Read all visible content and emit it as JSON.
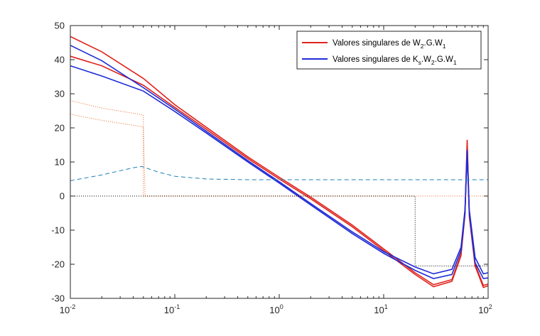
{
  "chart_data": {
    "type": "line",
    "xscale": "log",
    "xlim": [
      0.01,
      100
    ],
    "ylim": [
      -30,
      50
    ],
    "grid": false,
    "legend_position": "top-right",
    "x_ticks": [
      {
        "base": "10",
        "exp": "-2",
        "value": 0.01
      },
      {
        "base": "10",
        "exp": "-1",
        "value": 0.1
      },
      {
        "base": "10",
        "exp": "0",
        "value": 1
      },
      {
        "base": "10",
        "exp": "1",
        "value": 10
      },
      {
        "base": "10",
        "exp": "2",
        "value": 100
      }
    ],
    "y_ticks": [
      "-30",
      "-20",
      "-10",
      "0",
      "10",
      "20",
      "30",
      "40",
      "50"
    ],
    "colors": {
      "red": "#e0231c",
      "blue": "#1f2bd6",
      "orange_dotted": "#e8682a",
      "teal_dashed": "#1d7fb7",
      "black_dotted": "#000000"
    },
    "legend": [
      {
        "text_parts": [
          {
            "t": "Valores singulares de W"
          },
          {
            "t": "2",
            "sub": true
          },
          {
            "t": ".G.W"
          },
          {
            "t": "1",
            "sub": true
          }
        ],
        "color": "#e0231c"
      },
      {
        "text_parts": [
          {
            "t": "Valores singulares de K"
          },
          {
            "t": "s",
            "sub": true
          },
          {
            "t": ".W"
          },
          {
            "t": "2",
            "sub": true
          },
          {
            "t": ".G.W"
          },
          {
            "t": "1",
            "sub": true
          }
        ],
        "color": "#1f2bd6"
      }
    ],
    "series": [
      {
        "color": "#e0231c",
        "style": "solid",
        "points": [
          [
            0.01,
            46.8
          ],
          [
            0.02,
            42.3
          ],
          [
            0.05,
            34.5
          ],
          [
            0.1,
            26.8
          ],
          [
            0.2,
            20.2
          ],
          [
            0.5,
            11.5
          ],
          [
            1,
            5.5
          ],
          [
            2,
            -0.3
          ],
          [
            5,
            -8.5
          ],
          [
            10,
            -15.5
          ],
          [
            20,
            -22.5
          ],
          [
            30,
            -26.0
          ],
          [
            45,
            -24.5
          ],
          [
            55,
            -17
          ],
          [
            60,
            -5
          ],
          [
            63,
            16.5
          ],
          [
            66,
            -5
          ],
          [
            75,
            -20
          ],
          [
            90,
            -26.2
          ],
          [
            100,
            -25.8
          ]
        ]
      },
      {
        "color": "#e0231c",
        "style": "solid",
        "points": [
          [
            0.01,
            41.0
          ],
          [
            0.02,
            38.2
          ],
          [
            0.05,
            32.5
          ],
          [
            0.1,
            26.0
          ],
          [
            0.2,
            19.6
          ],
          [
            0.5,
            11.0
          ],
          [
            1,
            5.0
          ],
          [
            2,
            -0.8
          ],
          [
            5,
            -9.0
          ],
          [
            10,
            -16.0
          ],
          [
            20,
            -23.0
          ],
          [
            30,
            -26.6
          ],
          [
            45,
            -25.0
          ],
          [
            55,
            -17.5
          ],
          [
            60,
            -5.5
          ],
          [
            63,
            15.5
          ],
          [
            66,
            -6
          ],
          [
            75,
            -20.5
          ],
          [
            90,
            -26.8
          ],
          [
            100,
            -26.3
          ]
        ]
      },
      {
        "color": "#1f2bd6",
        "style": "solid",
        "points": [
          [
            0.01,
            44.2
          ],
          [
            0.02,
            39.7
          ],
          [
            0.05,
            31.8
          ],
          [
            0.1,
            25.5
          ],
          [
            0.2,
            19.0
          ],
          [
            0.5,
            10.4
          ],
          [
            1,
            4.2
          ],
          [
            2,
            -2.2
          ],
          [
            5,
            -10.5
          ],
          [
            10,
            -16.3
          ],
          [
            20,
            -20.8
          ],
          [
            30,
            -22.8
          ],
          [
            45,
            -21.5
          ],
          [
            55,
            -15
          ],
          [
            60,
            -4
          ],
          [
            63,
            13.5
          ],
          [
            66,
            -4
          ],
          [
            75,
            -18
          ],
          [
            90,
            -22.8
          ],
          [
            100,
            -22.5
          ]
        ]
      },
      {
        "color": "#1f2bd6",
        "style": "solid",
        "points": [
          [
            0.01,
            38.2
          ],
          [
            0.02,
            35.2
          ],
          [
            0.05,
            30.8
          ],
          [
            0.1,
            24.8
          ],
          [
            0.2,
            18.5
          ],
          [
            0.5,
            10.0
          ],
          [
            1,
            3.8
          ],
          [
            2,
            -2.6
          ],
          [
            5,
            -11.0
          ],
          [
            10,
            -16.8
          ],
          [
            20,
            -21.8
          ],
          [
            30,
            -24.2
          ],
          [
            45,
            -23.0
          ],
          [
            55,
            -16
          ],
          [
            60,
            -5
          ],
          [
            63,
            12.5
          ],
          [
            66,
            -5
          ],
          [
            75,
            -19.5
          ],
          [
            90,
            -24.2
          ],
          [
            100,
            -24.0
          ]
        ]
      },
      {
        "color": "#e8682a",
        "style": "dotted",
        "points": [
          [
            0.01,
            28.0
          ],
          [
            0.02,
            25.8
          ],
          [
            0.05,
            23.8
          ],
          [
            0.05,
            0
          ],
          [
            100,
            0
          ]
        ]
      },
      {
        "color": "#e8682a",
        "style": "dotted",
        "points": [
          [
            0.01,
            24.0
          ],
          [
            0.02,
            22.2
          ],
          [
            0.05,
            20.3
          ],
          [
            0.052,
            0
          ]
        ]
      },
      {
        "color": "#1d7fb7",
        "style": "dashed",
        "points": [
          [
            0.01,
            4.5
          ],
          [
            0.02,
            6.2
          ],
          [
            0.04,
            8.3
          ],
          [
            0.048,
            8.7
          ],
          [
            0.07,
            7.0
          ],
          [
            0.1,
            5.8
          ],
          [
            0.2,
            5.0
          ],
          [
            0.5,
            4.8
          ],
          [
            1,
            4.8
          ],
          [
            10,
            4.8
          ],
          [
            100,
            4.8
          ]
        ]
      },
      {
        "color": "#000000",
        "style": "dotted",
        "points": [
          [
            0.01,
            0
          ],
          [
            20,
            0
          ],
          [
            20,
            -20.5
          ],
          [
            100,
            -20.5
          ]
        ]
      }
    ]
  }
}
